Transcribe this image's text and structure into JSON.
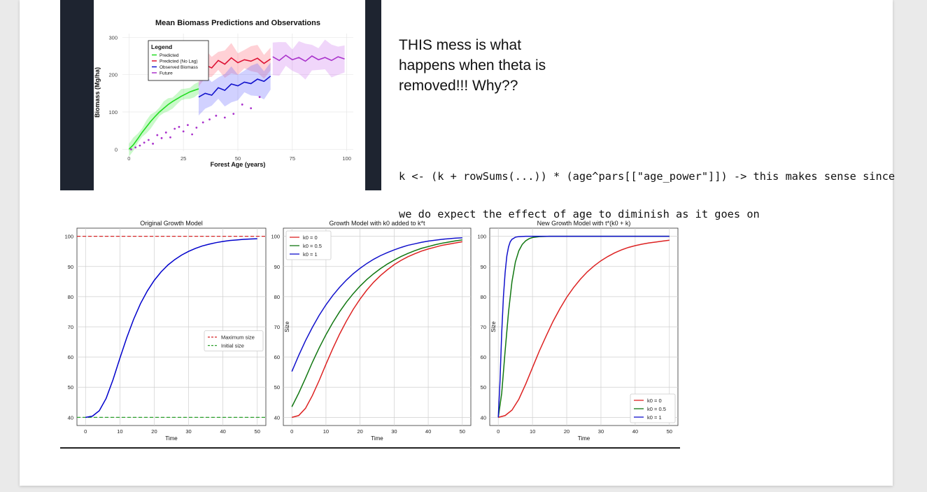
{
  "note": {
    "lines": [
      "THIS mess is what",
      "happens when theta is",
      "removed!!! Why??"
    ]
  },
  "code": {
    "lines": [
      "k <- (k + rowSums(...)) * (age^pars[[\"age_power\"]]) -> this makes sense since",
      "we do expect the effect of age to diminish as it goes on"
    ]
  },
  "colors": {
    "dark_panel": "#1e2430",
    "predicted": "#22dd22",
    "predicted_no_lag": "#dd1133",
    "observed": "#1111cc",
    "future": "#aa33cc"
  },
  "chart_data": [
    {
      "type": "line",
      "title": "Mean Biomass Predictions and Observations",
      "xlabel": "Forest Age (years)",
      "ylabel": "Biomass (Mg/ha)",
      "xlim": [
        -3,
        103
      ],
      "ylim": [
        -5,
        310
      ],
      "xticks": [
        0,
        25,
        50,
        75,
        100
      ],
      "yticks": [
        0,
        100,
        200,
        300
      ],
      "grid": true,
      "legend": {
        "title": "Legend",
        "placement": "top-left"
      },
      "series": [
        {
          "name": "Predicted",
          "color": "#22dd22",
          "x": [
            0,
            2,
            4,
            6,
            8,
            10,
            12,
            14,
            16,
            18,
            20,
            22,
            24,
            26,
            28,
            30,
            32
          ],
          "y": [
            0,
            12,
            28,
            45,
            60,
            75,
            88,
            100,
            110,
            120,
            128,
            135,
            142,
            148,
            154,
            158,
            162
          ]
        },
        {
          "name": "Predicted (No Lag)",
          "color": "#dd1133",
          "x": [
            32,
            35,
            38,
            41,
            44,
            47,
            50,
            53,
            56,
            59,
            62,
            65
          ],
          "y": [
            210,
            226,
            218,
            238,
            228,
            245,
            232,
            240,
            236,
            244,
            230,
            242
          ]
        },
        {
          "name": "Observed Biomass",
          "color": "#1111cc",
          "x": [
            32,
            35,
            38,
            41,
            44,
            47,
            50,
            53,
            56,
            59,
            62,
            65
          ],
          "y": [
            140,
            150,
            145,
            165,
            158,
            175,
            170,
            180,
            176,
            188,
            182,
            196
          ]
        },
        {
          "name": "Future",
          "color": "#aa33cc",
          "x": [
            66,
            69,
            72,
            75,
            78,
            81,
            84,
            87,
            90,
            93,
            96,
            99
          ],
          "y": [
            248,
            238,
            252,
            240,
            246,
            236,
            250,
            240,
            246,
            238,
            248,
            242
          ]
        }
      ],
      "observed_points": [
        [
          1,
          0
        ],
        [
          3,
          5
        ],
        [
          5,
          10
        ],
        [
          7,
          18
        ],
        [
          9,
          25
        ],
        [
          11,
          15
        ],
        [
          13,
          38
        ],
        [
          15,
          30
        ],
        [
          17,
          45
        ],
        [
          19,
          32
        ],
        [
          21,
          55
        ],
        [
          23,
          60
        ],
        [
          25,
          48
        ],
        [
          27,
          65
        ],
        [
          29,
          40
        ],
        [
          31,
          58
        ],
        [
          34,
          72
        ],
        [
          37,
          80
        ],
        [
          40,
          90
        ],
        [
          44,
          85
        ],
        [
          48,
          95
        ],
        [
          52,
          120
        ],
        [
          56,
          110
        ],
        [
          60,
          140
        ]
      ]
    },
    {
      "type": "line",
      "title": "Original Growth Model",
      "xlabel": "Time",
      "ylabel": "",
      "xlim": [
        -2.5,
        52.5
      ],
      "ylim": [
        37.3,
        102.7
      ],
      "xticks": [
        0,
        10,
        20,
        30,
        40,
        50
      ],
      "yticks": [
        40,
        50,
        60,
        70,
        80,
        90,
        100
      ],
      "grid": true,
      "legend": {
        "placement": "center-right",
        "entries": [
          "Maximum size",
          "Initial size"
        ]
      },
      "hlines": [
        {
          "name": "Maximum size",
          "y": 100,
          "color": "#d62728",
          "style": "dashed"
        },
        {
          "name": "Initial size",
          "y": 40,
          "color": "#2ca02c",
          "style": "dashed"
        }
      ],
      "series": [
        {
          "color": "#0000cc",
          "x": [
            0,
            2,
            4,
            6,
            8,
            10,
            12,
            14,
            16,
            18,
            20,
            22,
            24,
            26,
            28,
            30,
            32,
            34,
            36,
            38,
            40,
            42,
            44,
            46,
            48,
            50
          ],
          "y": [
            40,
            40.4,
            42.2,
            46.3,
            52.5,
            59.6,
            66.4,
            72.5,
            77.7,
            81.9,
            85.4,
            88.2,
            90.5,
            92.3,
            93.8,
            95,
            96,
            96.8,
            97.4,
            97.9,
            98.3,
            98.6,
            98.8,
            99,
            99.1,
            99.2
          ]
        }
      ]
    },
    {
      "type": "line",
      "title": "Growth Model with k0 added to k*t",
      "xlabel": "Time",
      "ylabel": "Size",
      "xlim": [
        -2.5,
        52.5
      ],
      "ylim": [
        37.3,
        102.7
      ],
      "xticks": [
        0,
        10,
        20,
        30,
        40,
        50
      ],
      "yticks": [
        40,
        50,
        60,
        70,
        80,
        90,
        100
      ],
      "grid": true,
      "legend": {
        "placement": "top-left"
      },
      "series": [
        {
          "name": "k0 = 0",
          "color": "#dd2222",
          "x": [
            0,
            2,
            4,
            6,
            8,
            10,
            12,
            14,
            16,
            18,
            20,
            22,
            24,
            26,
            28,
            30,
            32,
            34,
            36,
            38,
            40,
            42,
            44,
            46,
            48,
            50
          ],
          "y": [
            40,
            40.6,
            43,
            47.2,
            52.2,
            57.6,
            62.8,
            67.6,
            71.9,
            75.8,
            79.2,
            82.2,
            84.8,
            87,
            88.9,
            90.6,
            92,
            93.2,
            94.2,
            95.1,
            95.8,
            96.4,
            97,
            97.4,
            97.8,
            98.2
          ]
        },
        {
          "name": "k0 = 0.5",
          "color": "#117711",
          "x": [
            0,
            2,
            4,
            6,
            8,
            10,
            12,
            14,
            16,
            18,
            20,
            22,
            24,
            26,
            28,
            30,
            32,
            34,
            36,
            38,
            40,
            42,
            44,
            46,
            48,
            50
          ],
          "y": [
            43.5,
            48,
            53,
            58.2,
            63,
            67.4,
            71.4,
            75,
            78.2,
            81,
            83.5,
            85.7,
            87.6,
            89.3,
            90.8,
            92.1,
            93.3,
            94.3,
            95.2,
            96,
            96.6,
            97.2,
            97.7,
            98.1,
            98.5,
            98.8
          ]
        },
        {
          "name": "k0 = 1",
          "color": "#1111cc",
          "x": [
            0,
            2,
            4,
            6,
            8,
            10,
            12,
            14,
            16,
            18,
            20,
            22,
            24,
            26,
            28,
            30,
            32,
            34,
            36,
            38,
            40,
            42,
            44,
            46,
            48,
            50
          ],
          "y": [
            55.2,
            60.5,
            65.4,
            69.8,
            73.8,
            77.3,
            80.4,
            83.1,
            85.5,
            87.6,
            89.4,
            91,
            92.4,
            93.6,
            94.6,
            95.5,
            96.3,
            97,
            97.5,
            98,
            98.4,
            98.7,
            99,
            99.2,
            99.4,
            99.5
          ]
        }
      ]
    },
    {
      "type": "line",
      "title": "New Growth Model with t*(k0 + k)",
      "xlabel": "Time",
      "ylabel": "Size",
      "xlim": [
        -2.5,
        52.5
      ],
      "ylim": [
        37.3,
        102.7
      ],
      "xticks": [
        0,
        10,
        20,
        30,
        40,
        50
      ],
      "yticks": [
        40,
        50,
        60,
        70,
        80,
        90,
        100
      ],
      "grid": true,
      "legend": {
        "placement": "bottom-right"
      },
      "series": [
        {
          "name": "k0 = 0",
          "color": "#dd2222",
          "x": [
            0,
            2,
            4,
            6,
            8,
            10,
            12,
            14,
            16,
            18,
            20,
            22,
            24,
            26,
            28,
            30,
            32,
            34,
            36,
            38,
            40,
            42,
            44,
            46,
            48,
            50
          ],
          "y": [
            40,
            40.6,
            42.4,
            46,
            51,
            56.5,
            62,
            67,
            71.8,
            76,
            79.8,
            83,
            85.8,
            88.2,
            90.2,
            91.9,
            93.3,
            94.5,
            95.5,
            96.3,
            96.9,
            97.4,
            97.8,
            98.1,
            98.4,
            98.7
          ]
        },
        {
          "name": "k0 = 0.5",
          "color": "#117711",
          "x": [
            0,
            1,
            2,
            3,
            4,
            5,
            6,
            7,
            8,
            9,
            10,
            12,
            15,
            20,
            30,
            40,
            50
          ],
          "y": [
            40,
            48,
            62,
            75,
            85,
            91.5,
            95.2,
            97.3,
            98.5,
            99.2,
            99.6,
            99.9,
            100,
            100,
            100,
            100,
            100
          ]
        },
        {
          "name": "k0 = 1",
          "color": "#1111cc",
          "x": [
            0,
            0.5,
            1,
            1.5,
            2,
            2.5,
            3,
            3.5,
            4,
            5,
            6,
            8,
            10,
            20,
            30,
            40,
            50
          ],
          "y": [
            40,
            52,
            68,
            80,
            88,
            93.5,
            96.5,
            98.2,
            99,
            99.7,
            99.9,
            100,
            100,
            100,
            100,
            100,
            100
          ]
        }
      ]
    }
  ]
}
